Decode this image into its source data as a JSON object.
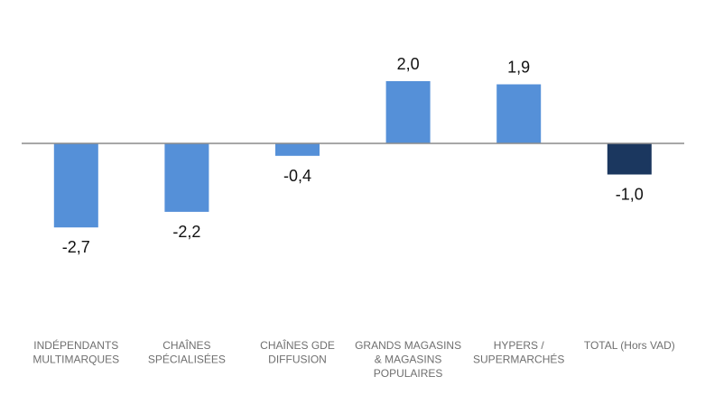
{
  "chart_data": {
    "type": "bar",
    "categories": [
      [
        "INDÉPENDANTS",
        "MULTIMARQUES"
      ],
      [
        "CHAÎNES",
        "SPÉCIALISÉES"
      ],
      [
        "CHAÎNES GDE",
        "DIFFUSION"
      ],
      [
        "GRANDS MAGASINS",
        "& MAGASINS",
        "POPULAIRES"
      ],
      [
        "HYPERS /",
        "SUPERMARCHÉS"
      ],
      [
        "TOTAL (Hors VAD)"
      ]
    ],
    "values": [
      -2.7,
      -2.2,
      -0.4,
      2.0,
      1.9,
      -1.0
    ],
    "value_labels": [
      "-2,7",
      "-2,2",
      "-0,4",
      "2,0",
      "1,9",
      "-1,0"
    ],
    "bar_colors": [
      "#5590d8",
      "#5590d8",
      "#5590d8",
      "#5590d8",
      "#5590d8",
      "#1b375f"
    ],
    "axis_color": "#8c8c8c",
    "ylim": [
      -4.6,
      4.6
    ],
    "grid": false,
    "legend": "none"
  }
}
